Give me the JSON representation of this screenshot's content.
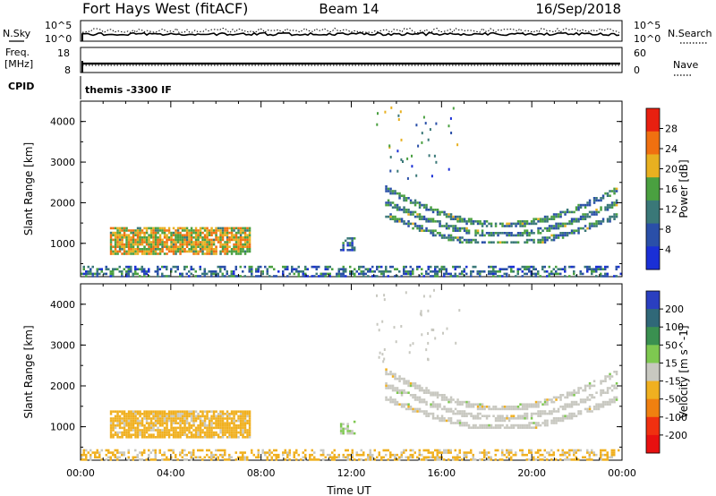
{
  "header": {
    "station": "Fort Hays West (fitACF)",
    "beam": "Beam 14",
    "date": "16/Sep/2018"
  },
  "top_panels": {
    "nsky_label": "N.Sky",
    "nsky_ticks": [
      "10^5",
      "10^0"
    ],
    "nsearch_label": "N.Search",
    "nsearch_ticks": [
      "10^5",
      "10^0"
    ],
    "freq_label_1": "Freq.",
    "freq_label_2": "[MHz]",
    "freq_ticks": [
      "18",
      "8"
    ],
    "nave_label": "Nave",
    "nave_ticks": [
      "60",
      "0"
    ],
    "cpid_label": "CPID",
    "cpid_value": "themis -3300 IF"
  },
  "chart_data": [
    {
      "type": "heatmap",
      "parameter": "Power",
      "xlabel": "Time UT",
      "ylabel": "Slant Range [km]",
      "colorbar_label": "Power [dB]",
      "xlim": [
        0,
        24
      ],
      "ylim": [
        180,
        4500
      ],
      "x_ticks": [
        "00:00",
        "04:00",
        "08:00",
        "12:00",
        "16:00",
        "20:00",
        "00:00"
      ],
      "y_ticks": [
        "1000",
        "2000",
        "3000",
        "4000"
      ],
      "colorbar_ticks": [
        "4",
        "8",
        "12",
        "16",
        "20",
        "24",
        "28"
      ],
      "colorbar_range": [
        0,
        32
      ],
      "colors": [
        "#1a2fd6",
        "#2a4fa8",
        "#3a7878",
        "#4aa040",
        "#e8b020",
        "#f07010",
        "#e82010"
      ],
      "regions": [
        {
          "t": [
            1.3,
            7.5
          ],
          "r": [
            750,
            1400
          ],
          "level": 20
        },
        {
          "t": [
            13.5,
            23.8
          ],
          "r": [
            1000,
            2600
          ],
          "level": 12
        },
        {
          "t": [
            11.5,
            12.1
          ],
          "r": [
            850,
            1150
          ],
          "level": 8
        },
        {
          "t": [
            0.0,
            24.0
          ],
          "r": [
            200,
            450
          ],
          "level": 10
        }
      ]
    },
    {
      "type": "heatmap",
      "parameter": "Velocity",
      "xlabel": "Time UT",
      "ylabel": "Slant Range [km]",
      "colorbar_label": "Velocity [m s^-1]",
      "xlim": [
        0,
        24
      ],
      "ylim": [
        180,
        4500
      ],
      "x_ticks": [
        "00:00",
        "04:00",
        "08:00",
        "12:00",
        "16:00",
        "20:00",
        "00:00"
      ],
      "y_ticks": [
        "1000",
        "2000",
        "3000",
        "4000"
      ],
      "colorbar_ticks": [
        "200",
        "100",
        "50",
        "15",
        "-15",
        "-50",
        "-100",
        "-200"
      ],
      "colorbar_range": [
        -250,
        250
      ],
      "colors": [
        "#2a3fc0",
        "#306878",
        "#3a9050",
        "#7ec850",
        "#c8c8c0",
        "#f0b020",
        "#f08010",
        "#f03010",
        "#e81010"
      ],
      "regions": [
        {
          "t": [
            1.3,
            7.5
          ],
          "r": [
            750,
            1400
          ],
          "level": -50
        },
        {
          "t": [
            13.5,
            23.8
          ],
          "r": [
            1000,
            2600
          ],
          "level": 0
        },
        {
          "t": [
            11.5,
            12.1
          ],
          "r": [
            850,
            1150
          ],
          "level": 30
        },
        {
          "t": [
            0.0,
            24.0
          ],
          "r": [
            200,
            450
          ],
          "level": -40
        }
      ]
    }
  ]
}
